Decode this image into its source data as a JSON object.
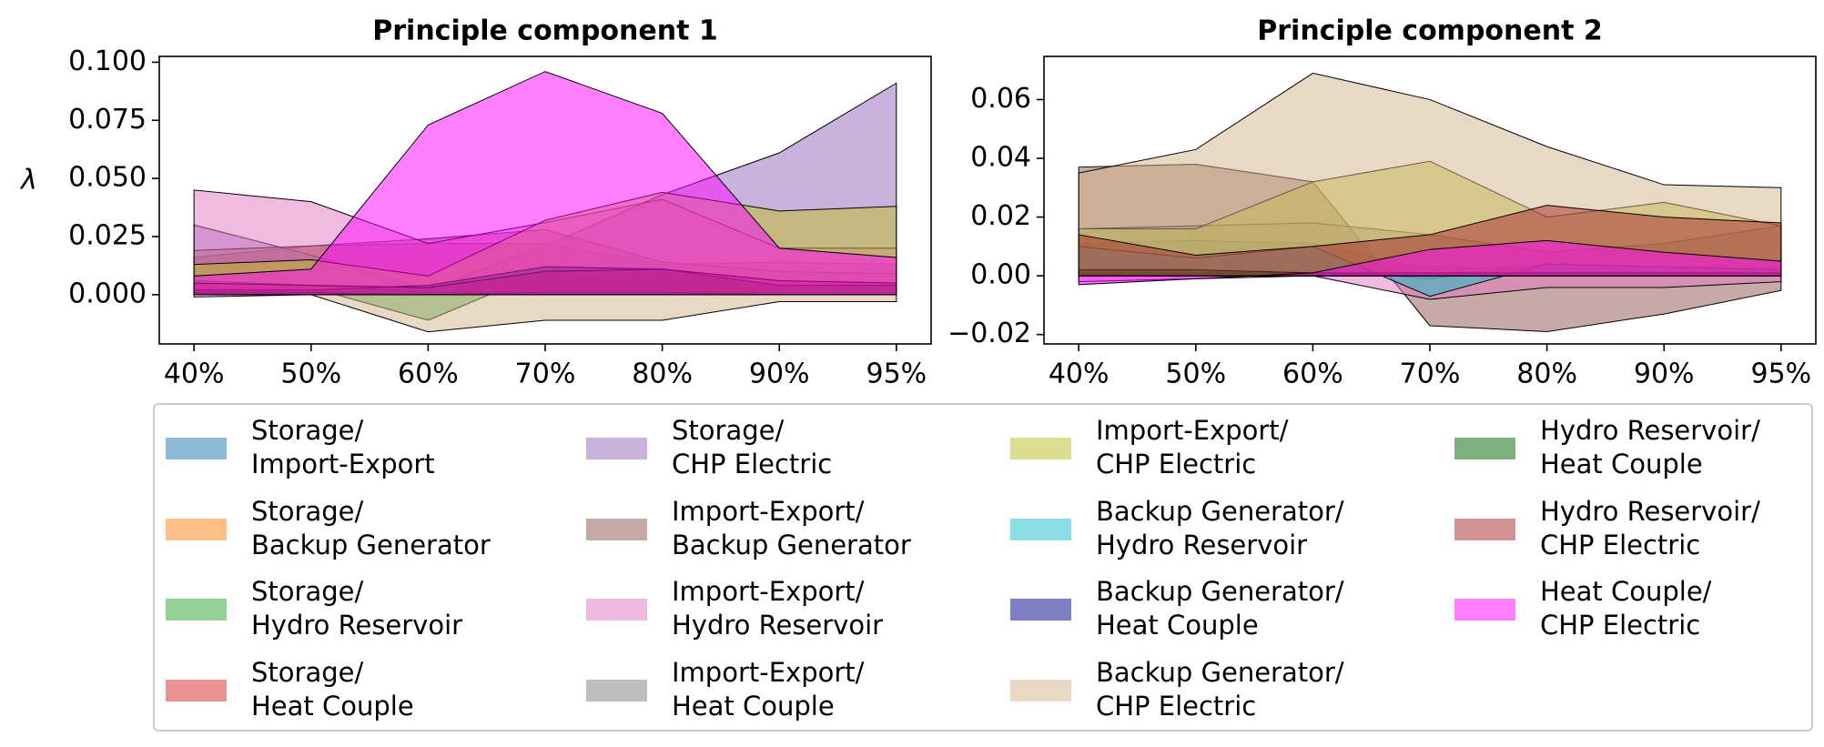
{
  "chart_data": [
    {
      "type": "area",
      "title": "Principle component 1",
      "y_label": "λ",
      "categories": [
        "40%",
        "50%",
        "60%",
        "70%",
        "80%",
        "90%",
        "95%"
      ],
      "ylim": [
        -0.0212,
        0.1025
      ],
      "yticks": [
        {
          "value": 0,
          "label": "0.000"
        },
        {
          "value": 0.025,
          "label": "0.025"
        },
        {
          "value": 0.05,
          "label": "0.050"
        },
        {
          "value": 0.075,
          "label": "0.075"
        },
        {
          "value": 0.1,
          "label": "0.100"
        }
      ],
      "series": [
        {
          "name": "Storage/\nImport-Export",
          "color": "#1f77b4",
          "values": [
            0.001,
            0.001,
            0.001,
            0.002,
            0.002,
            0.001,
            0.001
          ]
        },
        {
          "name": "Storage/\nBackup Generator",
          "color": "#ff7f0e",
          "values": [
            0.002,
            0.004,
            0.004,
            0.01,
            0.009,
            0.004,
            0.003
          ]
        },
        {
          "name": "Storage/\nHydro Reservoir",
          "color": "#2ca02c",
          "values": [
            0.003,
            0.003,
            -0.011,
            0.01,
            0.01,
            0.002,
            0.002
          ]
        },
        {
          "name": "Storage/\nHeat Couple",
          "color": "#d62728",
          "values": [
            0.016,
            0.021,
            0.022,
            0.022,
            0.013,
            0.014,
            0.013
          ]
        },
        {
          "name": "Storage/\nCHP Electric",
          "color": "#9467bd",
          "values": [
            0.03,
            0.017,
            0.002,
            0.021,
            0.043,
            0.061,
            0.091
          ]
        },
        {
          "name": "Import-Export/\nBackup Generator",
          "color": "#8c564b",
          "values": [
            0.019,
            0.021,
            0.024,
            0.028,
            0.014,
            0.01,
            0.009
          ]
        },
        {
          "name": "Import-Export/\nHydro Reservoir",
          "color": "#e377c2",
          "values": [
            0.045,
            0.04,
            0.022,
            0.031,
            0.041,
            0.02,
            0.02
          ]
        },
        {
          "name": "Import-Export/\nHeat Couple",
          "color": "#7f7f7f",
          "values": [
            0.006,
            0.004,
            0.001,
            0.001,
            0.001,
            0.001,
            0.001
          ]
        },
        {
          "name": "Import-Export/\nCHP Electric",
          "color": "#bcbd22",
          "values": [
            0.013,
            0.015,
            0.008,
            0.032,
            0.044,
            0.036,
            0.038
          ]
        },
        {
          "name": "Backup Generator/\nHydro Reservoir",
          "color": "#17becf",
          "values": [
            0.0,
            0.0,
            0.0,
            0.001,
            0.001,
            0.0,
            0.0
          ]
        },
        {
          "name": "Backup Generator/\nHeat Couple",
          "color": "#00008b",
          "values": [
            0.001,
            0.001,
            0.0,
            0.0,
            0.0,
            0.0,
            0.0
          ]
        },
        {
          "name": "Backup Generator/\nCHP Electric",
          "color": "#d2b48c",
          "values": [
            -0.001,
            0.0,
            -0.016,
            -0.011,
            -0.011,
            -0.003,
            -0.003
          ]
        },
        {
          "name": "Hydro Reservoir/\nHeat Couple",
          "color": "#006400",
          "values": [
            0.002,
            0.002,
            0.004,
            0.012,
            0.011,
            0.004,
            0.004
          ]
        },
        {
          "name": "Hydro Reservoir/\nCHP Electric",
          "color": "#a52a2a",
          "values": [
            0.005,
            0.004,
            0.003,
            0.01,
            0.011,
            0.006,
            0.005
          ]
        },
        {
          "name": "Heat Couple/\nCHP Electric",
          "color": "#ff00ff",
          "values": [
            0.008,
            0.011,
            0.073,
            0.096,
            0.078,
            0.02,
            0.016
          ]
        }
      ]
    },
    {
      "type": "area",
      "title": "Principle component 2",
      "categories": [
        "40%",
        "50%",
        "60%",
        "70%",
        "80%",
        "90%",
        "95%"
      ],
      "ylim": [
        -0.0232,
        0.0747
      ],
      "yticks": [
        {
          "value": -0.02,
          "label": "−0.02"
        },
        {
          "value": 0,
          "label": "0.00"
        },
        0.02,
        0.04,
        0.06
      ],
      "series": [
        {
          "values": [
            0.002,
            0.002,
            0.001,
            0.001,
            0.001,
            0.001,
            0.001
          ]
        },
        {
          "values": [
            0.004,
            0.004,
            0.004,
            0.003,
            0.002,
            0.002,
            0.002
          ]
        },
        {
          "values": [
            0.011,
            0.012,
            0.011,
            0.002,
            0.003,
            0.001,
            0.001
          ]
        },
        {
          "values": [
            0.003,
            0.003,
            0.002,
            0.001,
            0.002,
            0.003,
            0.003
          ]
        },
        {
          "values": [
            0.001,
            0.001,
            0.002,
            -0.001,
            0.004,
            0.003,
            0.002
          ]
        },
        {
          "values": [
            0.037,
            0.038,
            0.032,
            -0.017,
            -0.019,
            -0.013,
            -0.005
          ]
        },
        {
          "values": [
            -0.002,
            -0.001,
            0.0,
            -0.008,
            -0.004,
            -0.004,
            -0.002
          ]
        },
        {
          "values": [
            0.016,
            0.017,
            0.018,
            0.014,
            0.008,
            0.011,
            0.017
          ]
        },
        {
          "values": [
            0.016,
            0.016,
            0.032,
            0.039,
            0.02,
            0.025,
            0.017
          ]
        },
        {
          "values": [
            0.01,
            0.006,
            0.01,
            -0.007,
            0.004,
            0.003,
            0.002
          ]
        },
        {
          "values": [
            0.001,
            0.001,
            0.001,
            0.0,
            0.0,
            0.0,
            0.0
          ]
        },
        {
          "values": [
            0.035,
            0.043,
            0.069,
            0.06,
            0.044,
            0.031,
            0.03
          ]
        },
        {
          "values": [
            0.002,
            0.002,
            0.001,
            0.001,
            0.001,
            0.001,
            0.001
          ]
        },
        {
          "values": [
            0.014,
            0.007,
            0.01,
            0.014,
            0.024,
            0.02,
            0.018
          ]
        },
        {
          "values": [
            -0.003,
            -0.001,
            0.001,
            0.009,
            0.012,
            0.008,
            0.005
          ]
        }
      ]
    }
  ]
}
